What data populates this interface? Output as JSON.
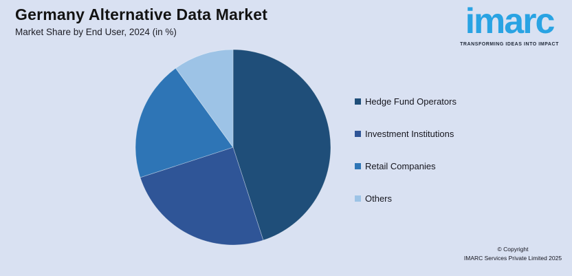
{
  "header": {
    "title": "Germany Alternative Data Market",
    "subtitle": "Market Share by End User, 2024 (in %)"
  },
  "logo": {
    "text": "imarc",
    "tagline": "TRANSFORMING IDEAS INTO IMPACT",
    "color": "#29a3e3"
  },
  "chart_data": {
    "type": "pie",
    "title": "Germany Alternative Data Market",
    "subtitle": "Market Share by End User, 2024 (in %)",
    "unit": "%",
    "start_angle_deg": 0,
    "direction": "clockwise",
    "legend_position": "right",
    "values_shown_on_chart": false,
    "segments": [
      {
        "label": "Hedge Fund Operators",
        "value": 45,
        "color": "#1F4E79"
      },
      {
        "label": "Investment Institutions",
        "value": 25,
        "color": "#2F5597"
      },
      {
        "label": "Retail Companies",
        "value": 20,
        "color": "#2E75B6"
      },
      {
        "label": "Others",
        "value": 10,
        "color": "#9DC3E6"
      }
    ]
  },
  "footer": {
    "copyright_line1": "© Copyright",
    "copyright_line2": "IMARC Services Private Limited 2025"
  },
  "colors": {
    "background": "#D9E1F2",
    "title_text": "#131313",
    "legend_text": "#15151D",
    "slice_border": "rgba(255,255,255,0.4)"
  }
}
